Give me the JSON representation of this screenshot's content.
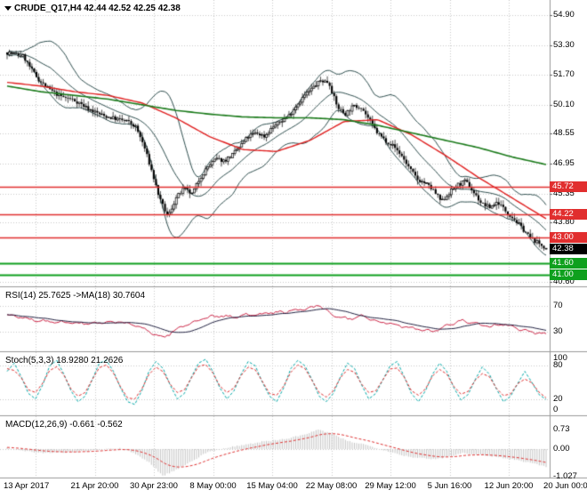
{
  "header": {
    "symbol_label": "CRUDE_Q17,H4 42.44 42.52 42.25 42.38"
  },
  "colors": {
    "background": "#ffffff",
    "grid": "#c9c9c9",
    "candle": "#000000",
    "candle_up_fill": "#ffffff",
    "bollinger": "#2f4f4f",
    "ma_red": "#e02020",
    "ma_green": "#1a7a1a",
    "line_red": "#e12e2e",
    "line_green": "#0fa01e",
    "badge_black": "#000000",
    "rsi_line": "#cc2244",
    "rsi_ma": "#202040",
    "stoch_k": "#00a8a8",
    "stoch_d": "#e03030",
    "macd_hist": "#bdbdbd",
    "macd_signal": "#e03030",
    "separator": "#999999",
    "text": "#000000"
  },
  "x_axis": {
    "date_labels": [
      "13 Apr 2017",
      "21 Apr 20:00",
      "30 Apr 23:00",
      "8 May 00:00",
      "15 May 04:00",
      "22 May 08:00",
      "29 May 12:00",
      "5 Jun 16:00",
      "12 Jun 20:00",
      "20 Jun 00:00"
    ]
  },
  "chart_data": {
    "type": "candlestick-multi-panel",
    "symbol": "CRUDE_Q17",
    "timeframe": "H4",
    "current_ohlc": {
      "open": "42.44",
      "high": "42.52",
      "low": "42.25",
      "close": "42.38"
    },
    "price_panel": {
      "y_ticks": [
        "54.90",
        "53.30",
        "51.70",
        "50.10",
        "48.55",
        "46.95",
        "45.35",
        "43.80",
        "40.60"
      ],
      "y_range": [
        40.0,
        55.7
      ],
      "closes": [
        52.9,
        52.8,
        52.7,
        52.0,
        51.4,
        51.0,
        50.7,
        50.5,
        50.4,
        50.2,
        49.9,
        49.7,
        49.5,
        49.4,
        49.3,
        49.2,
        48.9,
        47.9,
        46.5,
        45.0,
        44.1,
        45.1,
        45.6,
        45.3,
        46.2,
        46.8,
        47.2,
        47.1,
        47.4,
        47.9,
        48.4,
        48.6,
        48.4,
        48.9,
        49.2,
        49.5,
        50.1,
        50.6,
        51.0,
        51.4,
        51.3,
        50.0,
        49.6,
        50.0,
        50.0,
        49.3,
        48.6,
        48.2,
        47.9,
        47.4,
        46.7,
        46.1,
        45.9,
        45.5,
        44.9,
        45.4,
        45.8,
        46.0,
        45.4,
        44.8,
        44.6,
        44.9,
        44.4,
        44.0,
        43.5,
        43.0,
        42.7,
        42.4
      ],
      "bollinger": {
        "period": 20,
        "deviation": 2
      },
      "ma_red_path": [
        51.3,
        51.1,
        50.8,
        50.6,
        50.2,
        49.4,
        48.4,
        47.7,
        47.6,
        48.2,
        49.2,
        49.3,
        48.5,
        47.4,
        46.2,
        45.1,
        44.0
      ],
      "ma_green_path": [
        51.1,
        50.8,
        50.6,
        50.4,
        50.1,
        49.8,
        49.6,
        49.45,
        49.4,
        49.4,
        49.3,
        49.0,
        48.6,
        48.2,
        47.8,
        47.3,
        46.9
      ],
      "horizontal_lines": [
        {
          "price": "45.72",
          "color": "red"
        },
        {
          "price": "44.22",
          "color": "red"
        },
        {
          "price": "43.00",
          "color": "red"
        },
        {
          "price": "41.60",
          "color": "green"
        },
        {
          "price": "41.00",
          "color": "green"
        }
      ],
      "axis_badges": [
        {
          "label": "45.72",
          "color": "red"
        },
        {
          "label": "44.22",
          "color": "red"
        },
        {
          "label": "43.00",
          "color": "red"
        },
        {
          "label": "42.38",
          "color": "black"
        },
        {
          "label": "41.60",
          "color": "green"
        },
        {
          "label": "41.00",
          "color": "green"
        }
      ]
    },
    "rsi_panel": {
      "label": "RSI(14) 25.7625 ->MA(18) 30.7604",
      "period": 14,
      "ma_period": 18,
      "current": 25.7625,
      "ma_current": 30.7604,
      "axis_ticks": [
        "70",
        "30"
      ],
      "levels": [
        70,
        30
      ],
      "values": [
        55,
        52,
        48,
        46,
        45,
        43,
        42,
        44,
        45,
        40,
        30,
        20,
        34,
        44,
        52,
        55,
        52,
        57,
        58,
        60,
        62,
        65,
        71,
        55,
        50,
        54,
        46,
        42,
        38,
        34,
        30,
        39,
        47,
        42,
        38,
        42,
        34,
        29,
        26
      ]
    },
    "stoch_panel": {
      "label": "Stoch(5,3,3) 18.9280 21.2626",
      "current_k": 18.928,
      "current_d": 21.2626,
      "axis_ticks": [
        "100",
        "80",
        "20",
        "0"
      ],
      "levels": [
        80,
        20
      ],
      "k_values": [
        70,
        85,
        60,
        30,
        20,
        45,
        80,
        90,
        65,
        35,
        15,
        25,
        55,
        85,
        90,
        70,
        40,
        15,
        10,
        35,
        70,
        88,
        75,
        45,
        20,
        30,
        60,
        85,
        92,
        70,
        40,
        20,
        35,
        65,
        88,
        80,
        50,
        25,
        15,
        40,
        75,
        90,
        80,
        55,
        25,
        15,
        30,
        60,
        85,
        75,
        45,
        20,
        30,
        55,
        80,
        88,
        60,
        30,
        15,
        35,
        65,
        85,
        70,
        40,
        18,
        28,
        55,
        78,
        65,
        38,
        15,
        25,
        48,
        70,
        50,
        28,
        19
      ]
    },
    "macd_panel": {
      "label": "MACD(12,26,9) -0.661 -0.562",
      "current_macd": -0.661,
      "current_signal": -0.562,
      "axis_ticks": [
        "0.73",
        "0.00",
        "-1.027"
      ],
      "values": [
        0.05,
        -0.05,
        -0.12,
        -0.15,
        -0.12,
        -0.1,
        -0.05,
        0.0,
        0.02,
        -0.15,
        -0.5,
        -1.0,
        -0.75,
        -0.45,
        -0.15,
        0.0,
        0.1,
        0.18,
        0.28,
        0.33,
        0.42,
        0.55,
        0.73,
        0.55,
        0.3,
        0.2,
        0.05,
        -0.1,
        -0.25,
        -0.33,
        -0.38,
        -0.3,
        -0.15,
        -0.18,
        -0.25,
        -0.33,
        -0.42,
        -0.52,
        -0.66
      ]
    }
  }
}
